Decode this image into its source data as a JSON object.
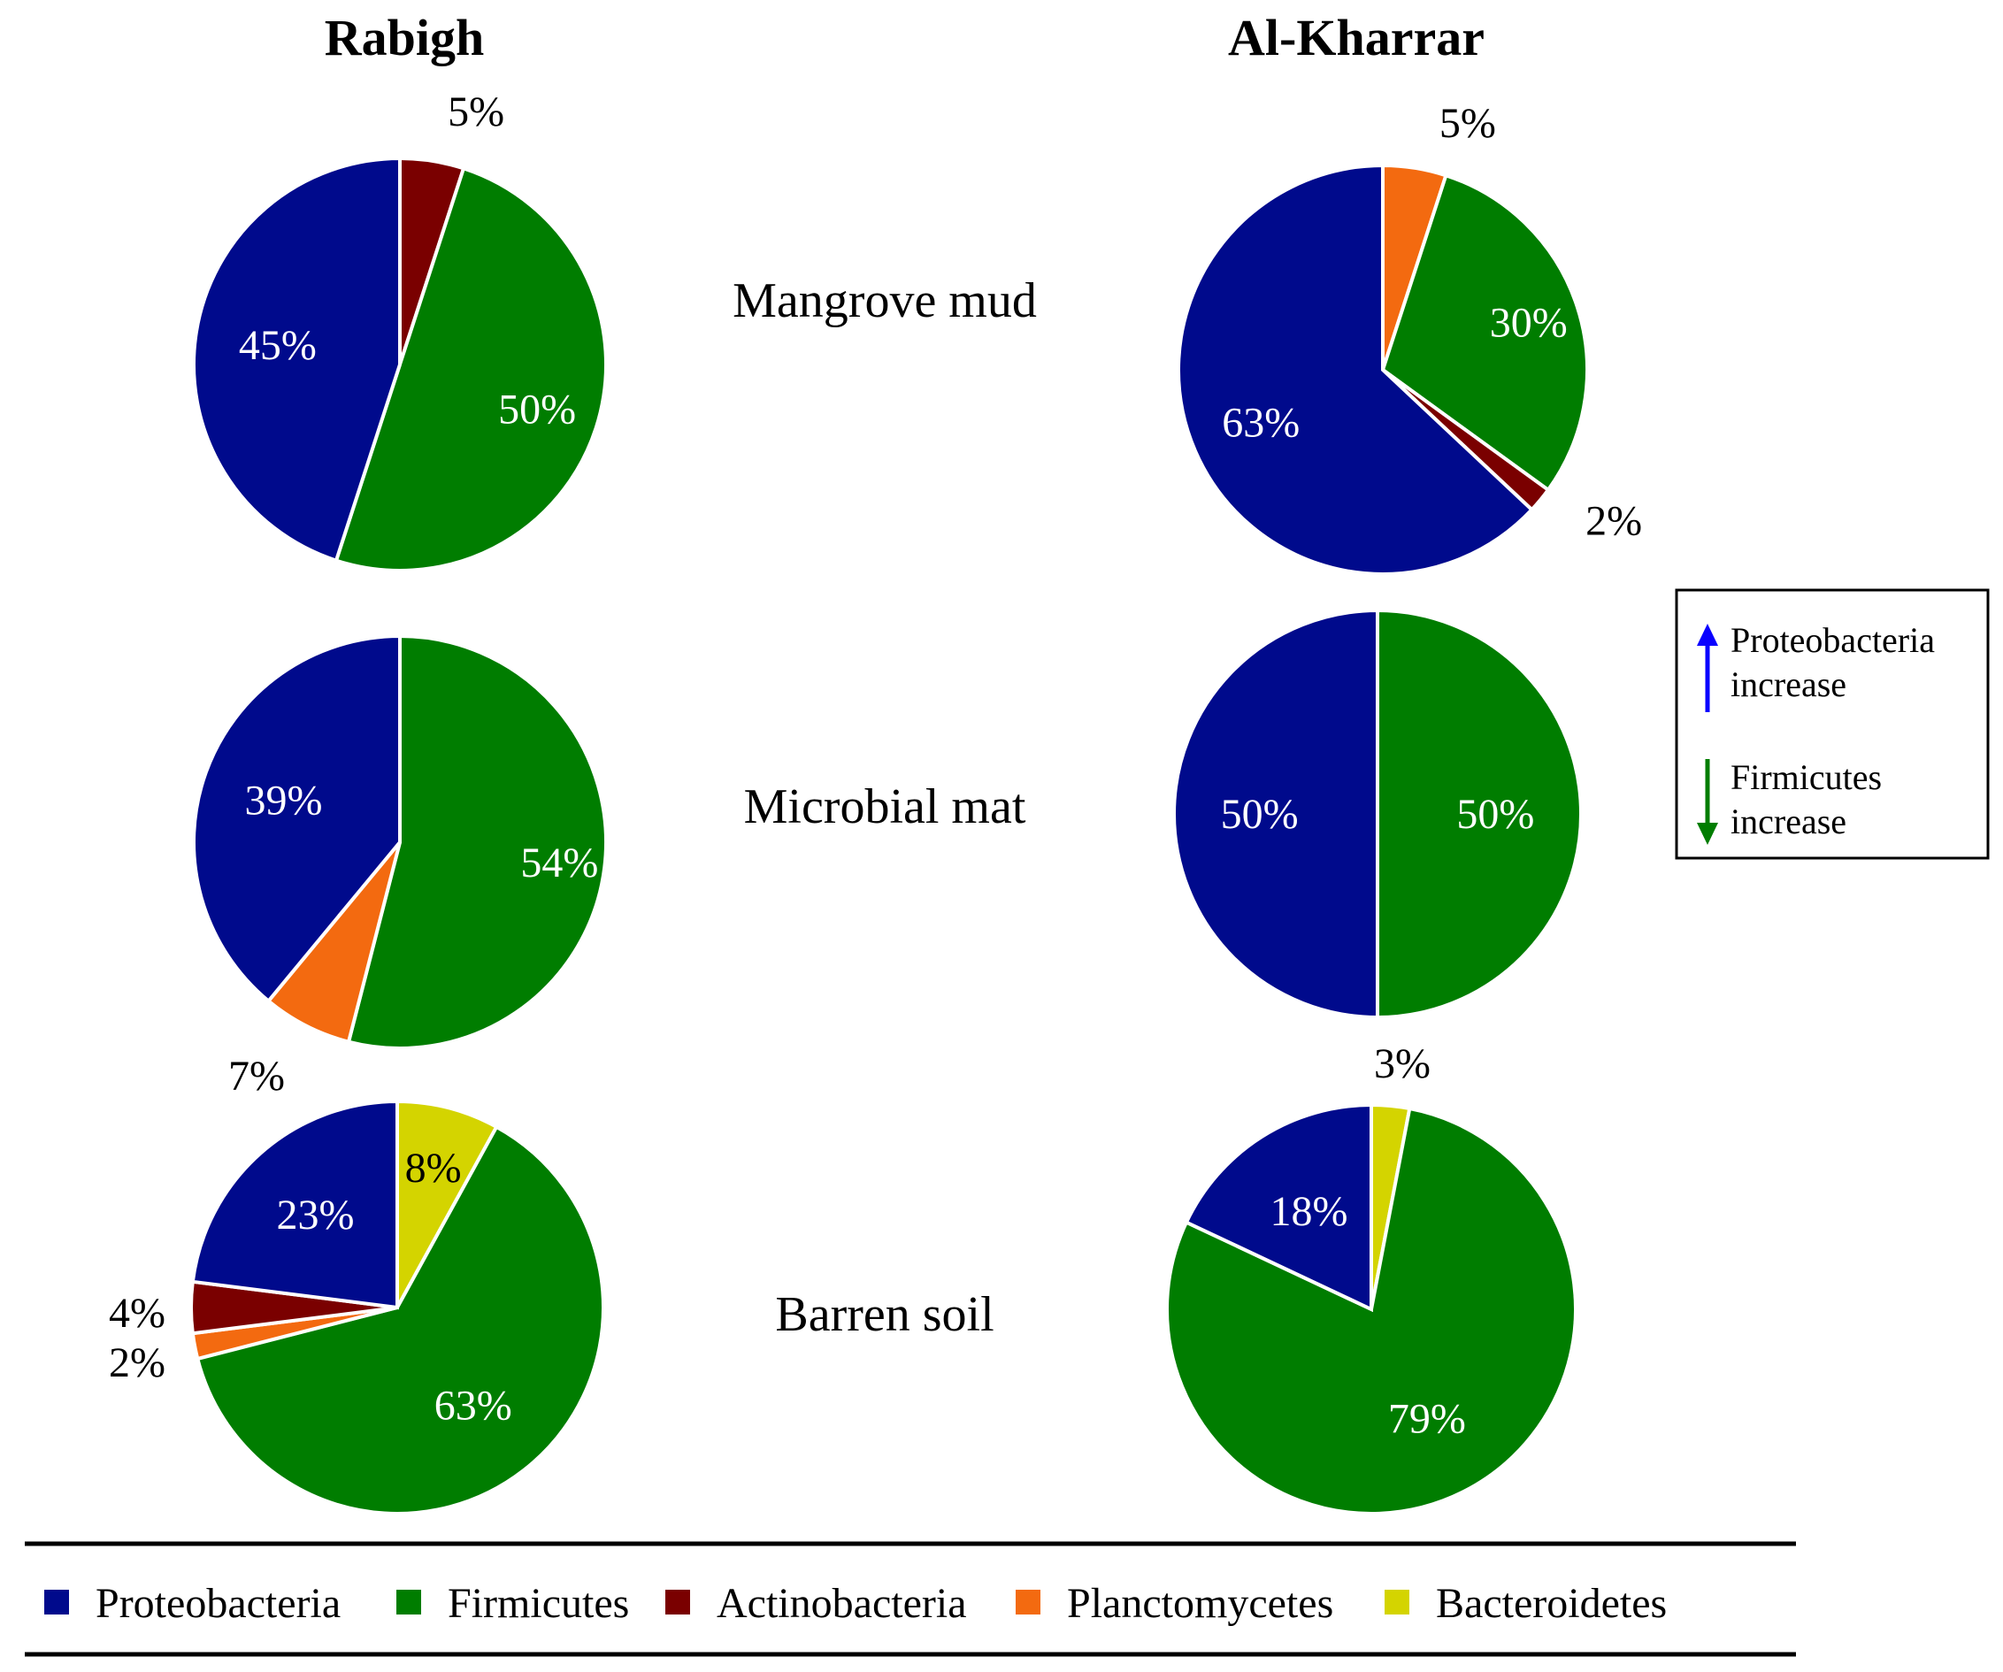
{
  "site_titles": [
    "Rabigh",
    "Al-Kharrar"
  ],
  "row_labels": [
    "Mangrove mud",
    "Microbial mat",
    "Barren soil"
  ],
  "categories": [
    "Proteobacteria",
    "Firmicutes",
    "Actinobacteria",
    "Planctomycetes",
    "Bacteroidetes"
  ],
  "colors": {
    "Proteobacteria": "#000a8c",
    "Firmicutes": "#007d00",
    "Actinobacteria": "#7a0000",
    "Planctomycetes": "#f36a10",
    "Bacteroidetes": "#d4d400"
  },
  "note": {
    "up_line1": "Proteobacteria",
    "up_line2": "increase",
    "down_line1": "Firmicutes",
    "down_line2": "increase",
    "up_color": "#0a00ff",
    "down_color": "#007d00"
  },
  "chart_data": [
    {
      "type": "pie",
      "site": "Rabigh",
      "sample": "Mangrove mud",
      "slices": [
        {
          "label": "Actinobacteria",
          "value": 5,
          "text": "5%"
        },
        {
          "label": "Firmicutes",
          "value": 50,
          "text": "50%"
        },
        {
          "label": "Proteobacteria",
          "value": 45,
          "text": "45%"
        }
      ]
    },
    {
      "type": "pie",
      "site": "Al-Kharrar",
      "sample": "Mangrove mud",
      "slices": [
        {
          "label": "Planctomycetes",
          "value": 5,
          "text": "5%"
        },
        {
          "label": "Firmicutes",
          "value": 30,
          "text": "30%"
        },
        {
          "label": "Actinobacteria",
          "value": 2,
          "text": "2%"
        },
        {
          "label": "Proteobacteria",
          "value": 63,
          "text": "63%"
        }
      ]
    },
    {
      "type": "pie",
      "site": "Rabigh",
      "sample": "Microbial mat",
      "slices": [
        {
          "label": "Firmicutes",
          "value": 54,
          "text": "54%"
        },
        {
          "label": "Planctomycetes",
          "value": 7,
          "text": "7%"
        },
        {
          "label": "Proteobacteria",
          "value": 39,
          "text": "39%"
        }
      ]
    },
    {
      "type": "pie",
      "site": "Al-Kharrar",
      "sample": "Microbial mat",
      "slices": [
        {
          "label": "Firmicutes",
          "value": 50,
          "text": "50%"
        },
        {
          "label": "Proteobacteria",
          "value": 50,
          "text": "50%"
        }
      ]
    },
    {
      "type": "pie",
      "site": "Rabigh",
      "sample": "Barren soil",
      "slices": [
        {
          "label": "Bacteroidetes",
          "value": 8,
          "text": "8%"
        },
        {
          "label": "Firmicutes",
          "value": 63,
          "text": "63%"
        },
        {
          "label": "Planctomycetes",
          "value": 2,
          "text": "2%"
        },
        {
          "label": "Actinobacteria",
          "value": 4,
          "text": "4%"
        },
        {
          "label": "Proteobacteria",
          "value": 23,
          "text": "23%"
        }
      ]
    },
    {
      "type": "pie",
      "site": "Al-Kharrar",
      "sample": "Barren soil",
      "slices": [
        {
          "label": "Bacteroidetes",
          "value": 3,
          "text": "3%"
        },
        {
          "label": "Firmicutes",
          "value": 79,
          "text": "79%"
        },
        {
          "label": "Proteobacteria",
          "value": 18,
          "text": "18%"
        }
      ]
    }
  ]
}
